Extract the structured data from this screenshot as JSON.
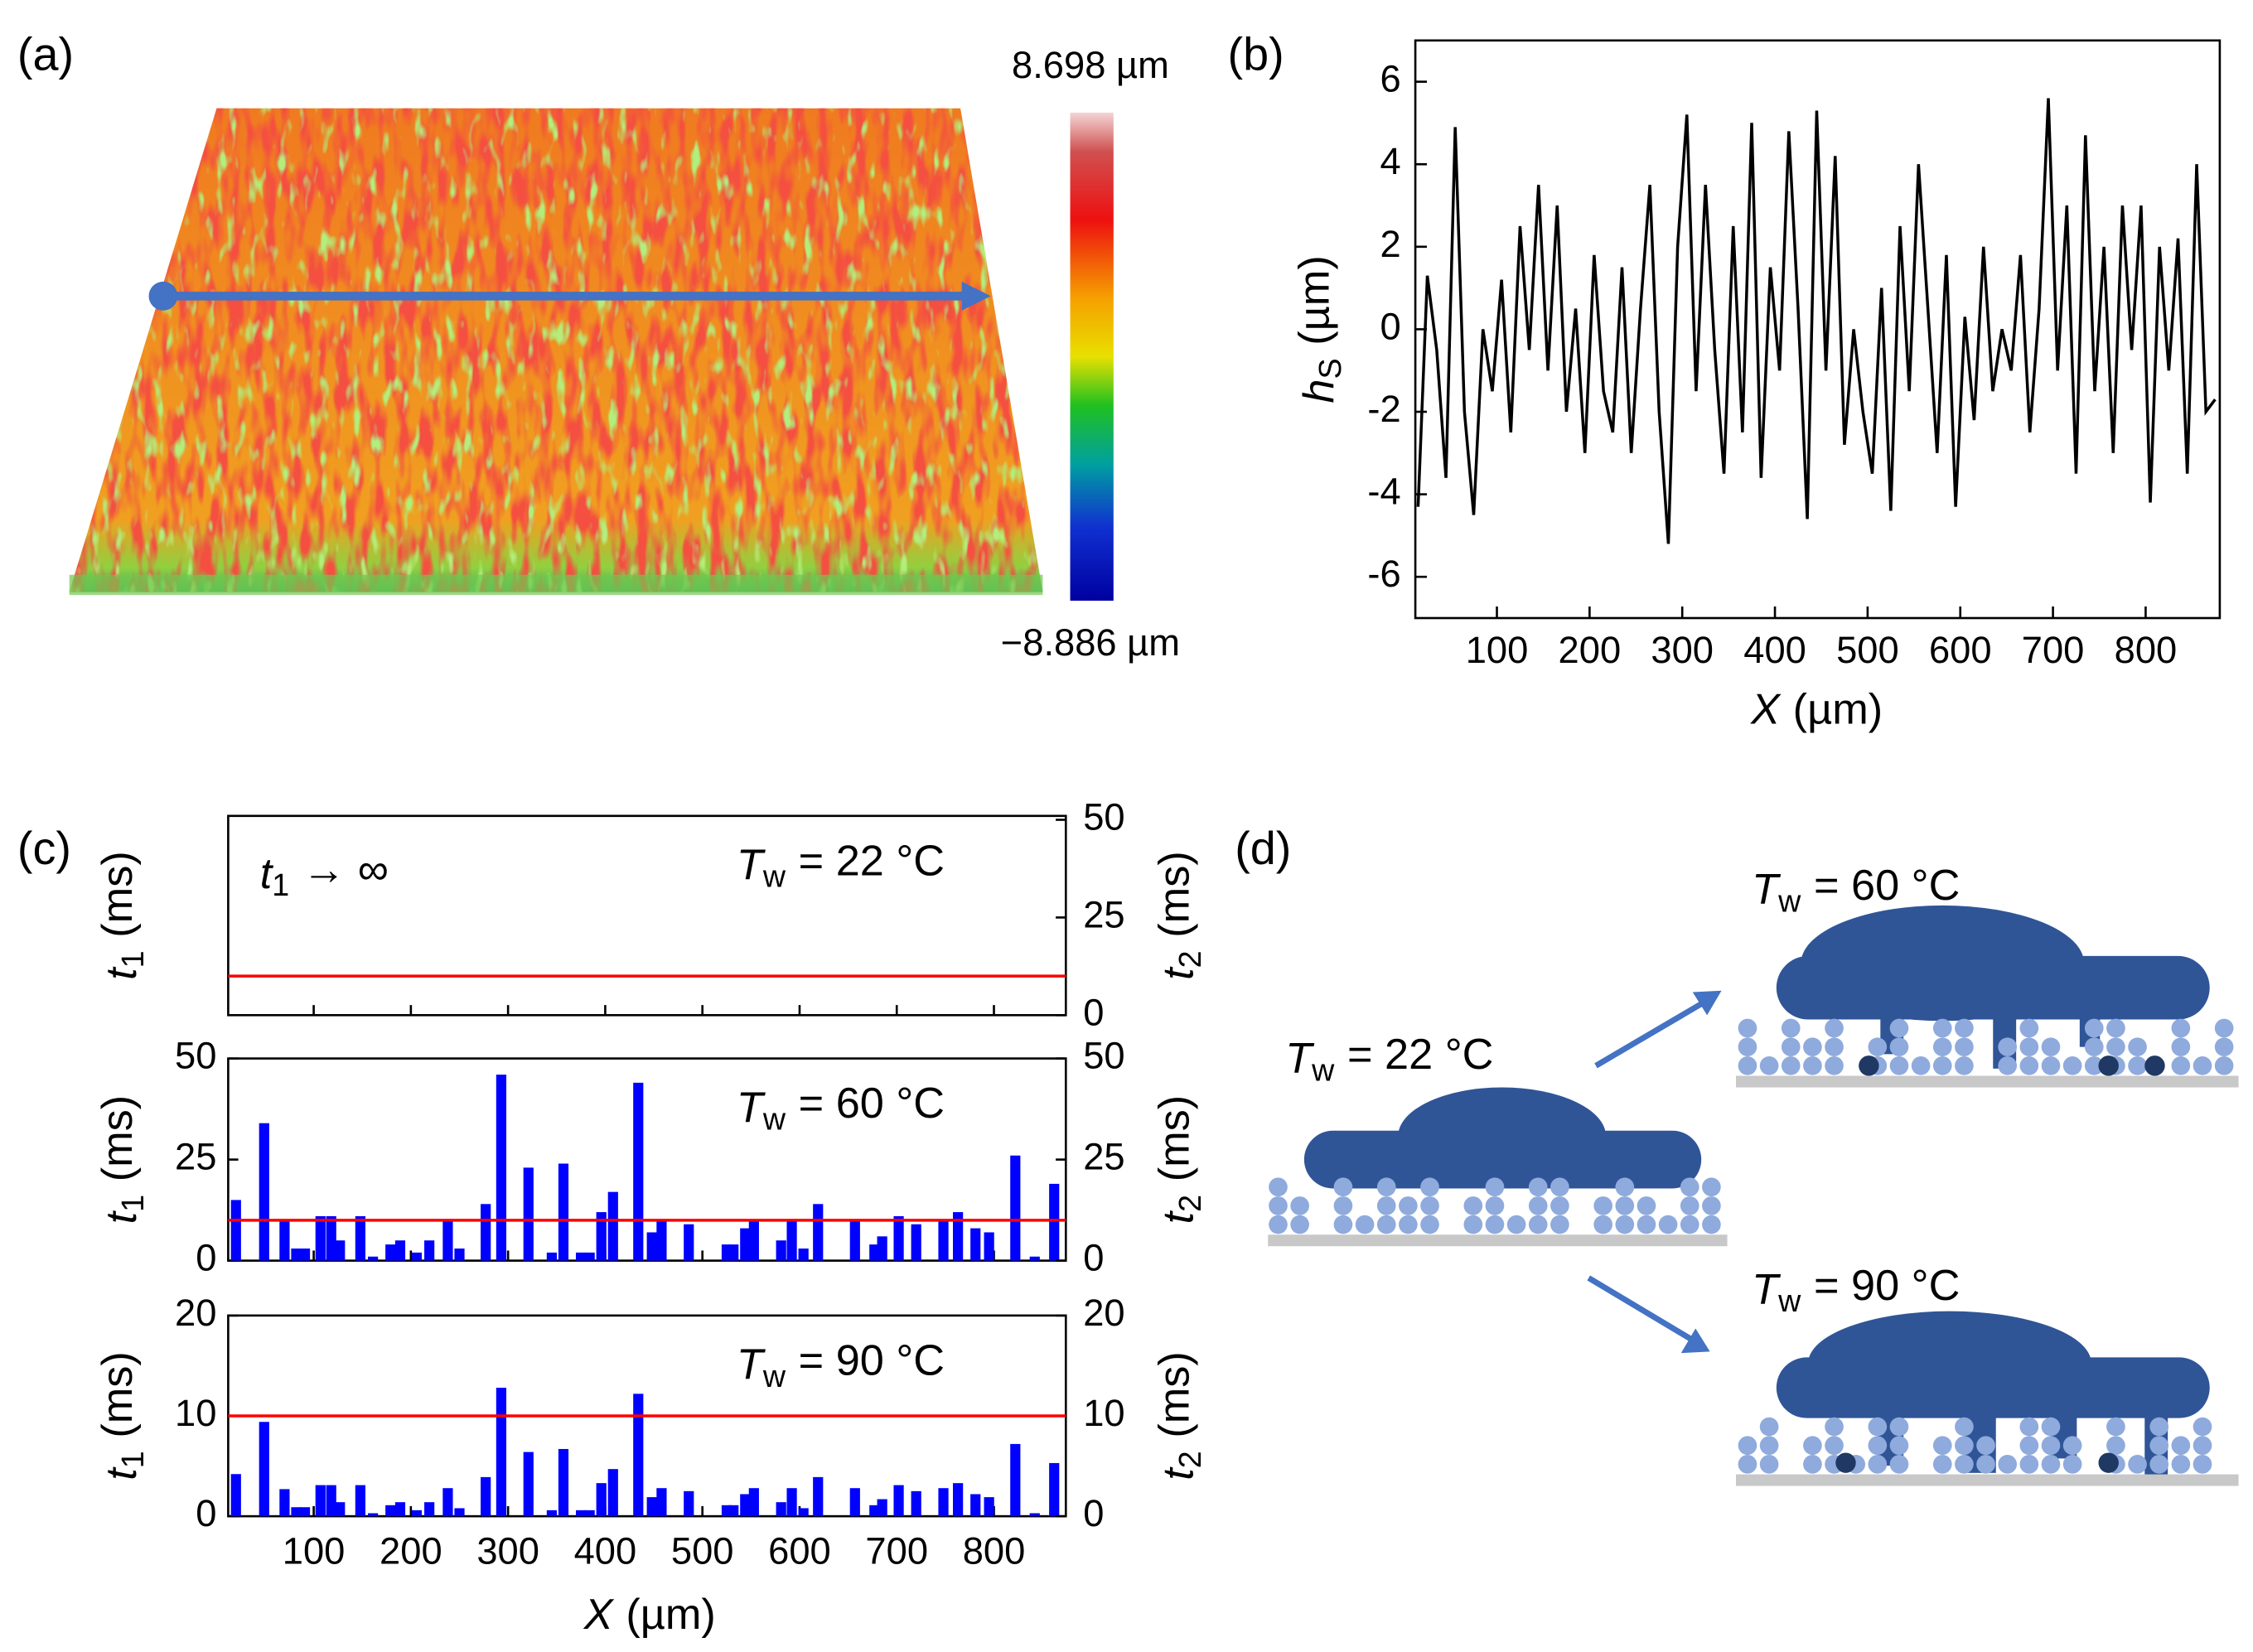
{
  "panels": [
    "(a)",
    "(b)",
    "(c)",
    "(d)"
  ],
  "chart_data": [
    {
      "type": "surface",
      "colorbar_labels": [
        "8.698 µm",
        "−8.886 µm"
      ]
    },
    {
      "type": "line",
      "color": "#000000",
      "xlabel": {
        "symbol": "X",
        "unit": "(µm)"
      },
      "ylabel": {
        "symbol": "h",
        "subscript": "S",
        "unit": "(µm)"
      },
      "xlim": [
        12,
        880
      ],
      "ylim": [
        -7,
        7
      ],
      "xticks": [
        100,
        200,
        300,
        400,
        500,
        600,
        700,
        800
      ],
      "yticks": [
        -6,
        -4,
        -2,
        0,
        2,
        4,
        6
      ],
      "x": [
        15,
        25,
        35,
        45,
        55,
        65,
        75,
        85,
        95,
        105,
        115,
        125,
        135,
        145,
        155,
        165,
        175,
        185,
        195,
        205,
        215,
        225,
        235,
        245,
        255,
        265,
        275,
        285,
        295,
        305,
        315,
        325,
        335,
        345,
        355,
        365,
        375,
        385,
        395,
        405,
        415,
        425,
        435,
        445,
        455,
        465,
        475,
        485,
        495,
        505,
        515,
        525,
        535,
        545,
        555,
        565,
        575,
        585,
        595,
        605,
        615,
        625,
        635,
        645,
        655,
        665,
        675,
        685,
        695,
        705,
        715,
        725,
        735,
        745,
        755,
        765,
        775,
        785,
        795,
        805,
        815,
        825,
        835,
        845,
        855,
        865,
        875
      ],
      "values": [
        -4.3,
        1.3,
        -0.5,
        -3.6,
        4.9,
        -2,
        -4.5,
        0,
        -1.5,
        1.2,
        -2.5,
        2.5,
        -0.5,
        3.5,
        -1,
        3,
        -2,
        0.5,
        -3,
        1.8,
        -1.5,
        -2.5,
        1.5,
        -3,
        0.5,
        3.5,
        -2,
        -5.2,
        2,
        5.2,
        -1.5,
        3.5,
        -0.5,
        -3.5,
        2.5,
        -2.5,
        5,
        -3.6,
        1.5,
        -1,
        4.8,
        0.5,
        -4.6,
        5.3,
        -1,
        4.2,
        -2.8,
        0,
        -2,
        -3.5,
        1,
        -4.4,
        2.5,
        -1.5,
        4,
        0.5,
        -3,
        1.8,
        -4.3,
        0.3,
        -2.2,
        2,
        -1.5,
        0,
        -1,
        1.8,
        -2.5,
        0.5,
        5.6,
        -1,
        3,
        -3.5,
        4.7,
        -1.5,
        2,
        -3,
        3,
        -0.5,
        3,
        -4.2,
        2,
        -1,
        2.2,
        -3.5,
        4,
        -2,
        -1.7
      ]
    },
    {
      "type": "bar",
      "annotation": {
        "symbol": "T",
        "subscript": "w",
        "text": "= 22 °C"
      },
      "note": {
        "symbol": "t",
        "subscript": "1",
        "text": "→ ∞",
        "color": "#2020d8"
      },
      "ylabel": {
        "symbol": "t",
        "subscript": "1",
        "unit": "(ms)"
      },
      "y2label": {
        "symbol": "t",
        "subscript": "2",
        "unit": "(ms)"
      },
      "xlim": [
        12,
        874
      ],
      "xticks": [
        100,
        200,
        300,
        400,
        500,
        600,
        700,
        800
      ],
      "y2lim": [
        0,
        51
      ],
      "y2ticks": [
        0,
        25,
        50
      ],
      "hline": {
        "value": 10,
        "color": "#ff0000"
      }
    },
    {
      "type": "bar",
      "annotation": {
        "symbol": "T",
        "subscript": "w",
        "text": "= 60 °C"
      },
      "ylabel": {
        "symbol": "t",
        "subscript": "1",
        "unit": "(ms)"
      },
      "y2label": {
        "symbol": "t",
        "subscript": "2",
        "unit": "(ms)"
      },
      "xlim": [
        12,
        874
      ],
      "xticks": [
        100,
        200,
        300,
        400,
        500,
        600,
        700,
        800
      ],
      "ylim": [
        0,
        50
      ],
      "yticks": [
        0,
        25,
        50
      ],
      "y2lim": [
        0,
        50
      ],
      "y2ticks": [
        0,
        25,
        50
      ],
      "hline": {
        "value": 10,
        "color": "#ff0000"
      },
      "bars": {
        "color": "#0000ff",
        "x": [
          20,
          49,
          70,
          82,
          91,
          107,
          118,
          127,
          148,
          161,
          179,
          189,
          206,
          219,
          238,
          250,
          277,
          293,
          321,
          345,
          357,
          375,
          384,
          396,
          408,
          434,
          448,
          458,
          486,
          525,
          532,
          544,
          553,
          581,
          592,
          604,
          619,
          657,
          677,
          685,
          702,
          720,
          748,
          763,
          781,
          795,
          822,
          842,
          862
        ],
        "values": [
          15,
          34,
          10,
          3,
          3,
          11,
          11,
          5,
          11,
          1,
          4,
          5,
          2,
          5,
          10,
          3,
          14,
          46,
          23,
          2,
          24,
          2,
          2,
          12,
          17,
          44,
          7,
          10,
          9,
          4,
          4,
          8,
          10,
          5,
          10,
          3,
          14,
          10,
          4,
          6,
          11,
          9,
          10,
          12,
          8,
          7,
          26,
          1,
          19
        ]
      }
    },
    {
      "type": "bar",
      "annotation": {
        "symbol": "T",
        "subscript": "w",
        "text": "= 90 °C"
      },
      "ylabel": {
        "symbol": "t",
        "subscript": "1",
        "unit": "(ms)"
      },
      "y2label": {
        "symbol": "t",
        "subscript": "2",
        "unit": "(ms)"
      },
      "xlabel": {
        "symbol": "X",
        "unit": "(µm)"
      },
      "xlim": [
        12,
        874
      ],
      "xticks": [
        100,
        200,
        300,
        400,
        500,
        600,
        700,
        800
      ],
      "ylim": [
        0,
        20
      ],
      "yticks": [
        0,
        10,
        20
      ],
      "y2lim": [
        0,
        20
      ],
      "y2ticks": [
        0,
        10,
        20
      ],
      "hline": {
        "value": 10,
        "color": "#ff0000"
      },
      "bars": {
        "color": "#0000ff",
        "x": [
          20,
          49,
          70,
          82,
          91,
          107,
          118,
          127,
          148,
          161,
          179,
          189,
          206,
          219,
          238,
          250,
          277,
          293,
          321,
          345,
          357,
          375,
          384,
          396,
          408,
          434,
          448,
          458,
          486,
          525,
          532,
          544,
          553,
          581,
          592,
          604,
          619,
          657,
          677,
          685,
          702,
          720,
          748,
          763,
          781,
          795,
          822,
          842,
          862
        ],
        "values": [
          4.2,
          9.4,
          2.7,
          0.9,
          0.9,
          3.1,
          3.1,
          1.4,
          3.1,
          0.3,
          1.1,
          1.4,
          0.6,
          1.4,
          2.8,
          0.8,
          3.9,
          12.8,
          6.4,
          0.6,
          6.7,
          0.6,
          0.6,
          3.3,
          4.7,
          12.2,
          1.9,
          2.8,
          2.5,
          1.1,
          1.1,
          2.2,
          2.8,
          1.4,
          2.8,
          0.8,
          3.9,
          2.8,
          1.1,
          1.7,
          3.1,
          2.5,
          2.8,
          3.3,
          2.2,
          1.9,
          7.2,
          0.3,
          5.3
        ]
      }
    }
  ],
  "diagram": {
    "states": [
      {
        "symbol": "T",
        "subscript": "w",
        "text": "= 22 °C"
      },
      {
        "symbol": "T",
        "subscript": "w",
        "text": "= 60 °C"
      },
      {
        "symbol": "T",
        "subscript": "w",
        "text": "= 90 °C"
      }
    ]
  }
}
